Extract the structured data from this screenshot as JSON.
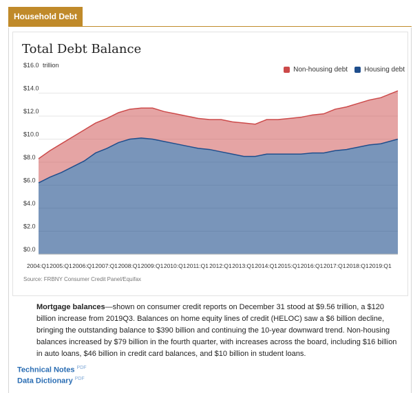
{
  "tab": {
    "label": "Household Debt"
  },
  "chart_data": {
    "type": "area",
    "title": "Total Debt Balance",
    "unit_label": "trillion",
    "ylim": [
      0,
      16
    ],
    "y_ticks": [
      "$0.0",
      "$2.0",
      "$4.0",
      "$6.0",
      "$8.0",
      "$10.0",
      "$12.0",
      "$14.0",
      "$16.0"
    ],
    "x_ticks": [
      "2004:Q1",
      "2005:Q1",
      "2006:Q1",
      "2007:Q1",
      "2008:Q1",
      "2009:Q1",
      "2010:Q1",
      "2011:Q1",
      "2012:Q1",
      "2013:Q1",
      "2014:Q1",
      "2015:Q1",
      "2016:Q1",
      "2017:Q1",
      "2018:Q1",
      "2019:Q1"
    ],
    "x": [
      2004.0,
      2004.5,
      2005.0,
      2005.5,
      2006.0,
      2006.5,
      2007.0,
      2007.5,
      2008.0,
      2008.5,
      2009.0,
      2009.5,
      2010.0,
      2010.5,
      2011.0,
      2011.5,
      2012.0,
      2012.5,
      2013.0,
      2013.5,
      2014.0,
      2014.5,
      2015.0,
      2015.5,
      2016.0,
      2016.5,
      2017.0,
      2017.5,
      2018.0,
      2018.5,
      2019.0,
      2019.75
    ],
    "series": [
      {
        "name": "Housing debt",
        "color": "#1f4e8c",
        "values": [
          6.2,
          6.7,
          7.1,
          7.6,
          8.1,
          8.8,
          9.2,
          9.7,
          10.0,
          10.1,
          10.0,
          9.8,
          9.6,
          9.4,
          9.2,
          9.1,
          8.9,
          8.7,
          8.5,
          8.5,
          8.7,
          8.7,
          8.7,
          8.7,
          8.8,
          8.8,
          9.0,
          9.1,
          9.3,
          9.5,
          9.6,
          10.0
        ]
      },
      {
        "name": "Non-housing debt",
        "color": "#cc4a4a",
        "values": [
          2.1,
          2.3,
          2.5,
          2.6,
          2.7,
          2.6,
          2.6,
          2.6,
          2.6,
          2.6,
          2.7,
          2.6,
          2.6,
          2.6,
          2.6,
          2.6,
          2.8,
          2.8,
          2.9,
          2.8,
          3.0,
          3.0,
          3.1,
          3.2,
          3.3,
          3.4,
          3.6,
          3.7,
          3.8,
          3.9,
          4.0,
          4.2
        ]
      }
    ],
    "legend": "top-right",
    "source": "Source: FRBNY Consumer Credit Panel/Equifax"
  },
  "description": {
    "lead": "Mortgage balances",
    "text": "—shown on consumer credit reports on December 31 stood at $9.56 trillion, a $120 billion increase from 2019Q3. Balances on home equity lines of credit (HELOC) saw a $6 billion decline, bringing the outstanding balance to $390 billion and continuing the 10-year downward trend. Non-housing balances increased by $79 billion in the fourth quarter, with increases across the board, including $16 billion in auto loans, $46 billion in credit card balances, and $10 billion in student loans."
  },
  "links": [
    {
      "label": "Technical Notes",
      "badge": "PDF"
    },
    {
      "label": "Data Dictionary",
      "badge": "PDF"
    }
  ]
}
